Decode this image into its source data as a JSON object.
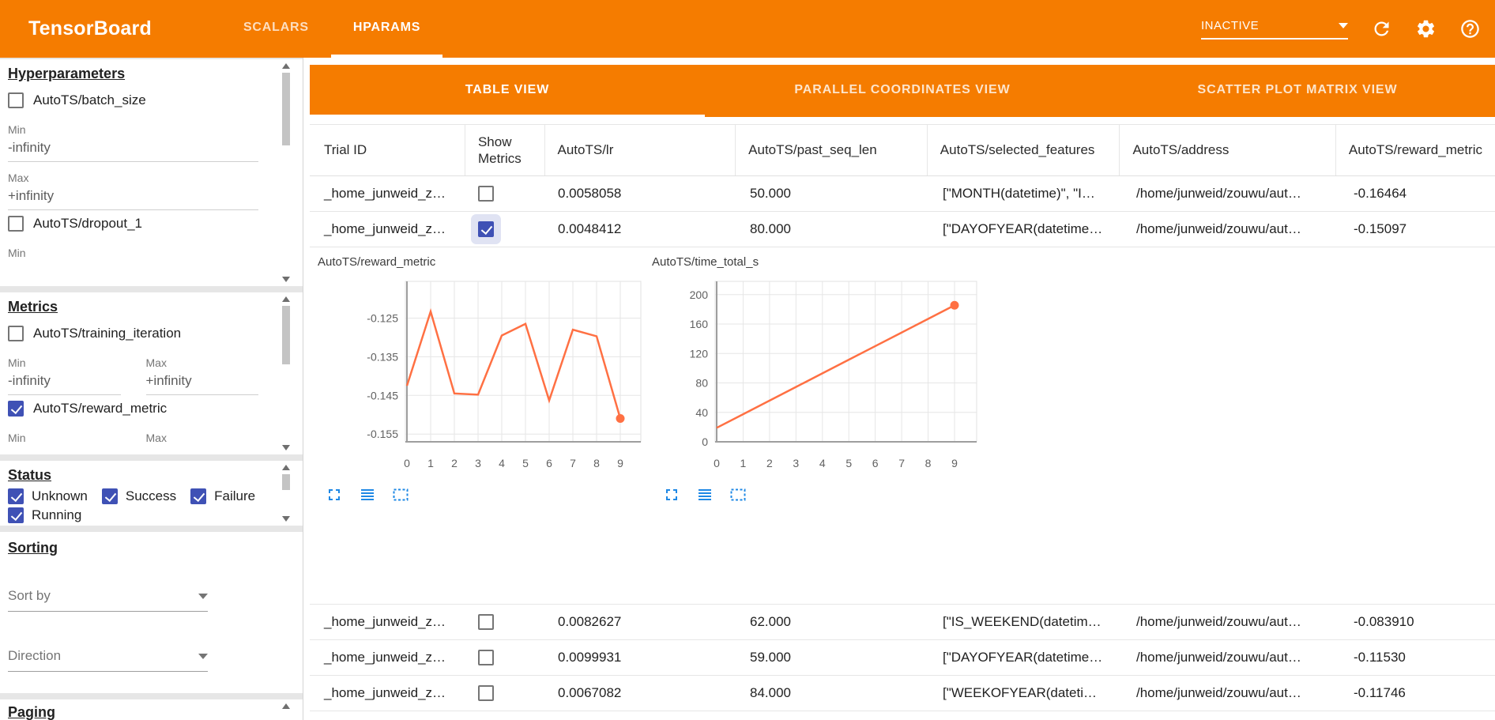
{
  "topbar": {
    "title": "TensorBoard",
    "nav_tabs": [
      {
        "label": "SCALARS"
      },
      {
        "label": "HPARAMS"
      }
    ],
    "run_status": "INACTIVE",
    "accent_color": "#f57c00"
  },
  "sidebar": {
    "hyperparameters": {
      "title": "Hyperparameters",
      "params": [
        {
          "label": "AutoTS/batch_size",
          "checked": false,
          "min_label": "Min",
          "min_value": "-infinity",
          "max_label": "Max",
          "max_value": "+infinity"
        },
        {
          "label": "AutoTS/dropout_1",
          "checked": false,
          "min_label": "Min"
        }
      ]
    },
    "metrics": {
      "title": "Metrics",
      "items": [
        {
          "label": "AutoTS/training_iteration",
          "checked": false,
          "min_label": "Min",
          "min_value": "-infinity",
          "max_label": "Max",
          "max_value": "+infinity"
        },
        {
          "label": "AutoTS/reward_metric",
          "checked": true,
          "min_label": "Min",
          "max_label": "Max"
        }
      ]
    },
    "status": {
      "title": "Status",
      "options": [
        {
          "label": "Unknown",
          "checked": true
        },
        {
          "label": "Success",
          "checked": true
        },
        {
          "label": "Failure",
          "checked": true
        },
        {
          "label": "Running",
          "checked": true
        }
      ]
    },
    "sorting": {
      "title": "Sorting",
      "sort_by_placeholder": "Sort by",
      "direction_placeholder": "Direction"
    },
    "paging": {
      "title": "Paging"
    }
  },
  "view_tabs": [
    {
      "label": "TABLE VIEW",
      "active": true
    },
    {
      "label": "PARALLEL COORDINATES VIEW",
      "active": false
    },
    {
      "label": "SCATTER PLOT MATRIX VIEW",
      "active": false
    }
  ],
  "table": {
    "columns": [
      "Trial ID",
      "Show Metrics",
      "AutoTS/lr",
      "AutoTS/past_seq_len",
      "AutoTS/selected_features",
      "AutoTS/address",
      "AutoTS/reward_metric"
    ],
    "rows": [
      {
        "trial_id": "_home_junweid_z…",
        "show_metrics": false,
        "lr": "0.0058058",
        "past_seq_len": "50.000",
        "selected_features": "[\"MONTH(datetime)\", \"I…",
        "address": "/home/junweid/zouwu/aut…",
        "reward_metric": "-0.16464"
      },
      {
        "trial_id": "_home_junweid_z…",
        "show_metrics": true,
        "lr": "0.0048412",
        "past_seq_len": "80.000",
        "selected_features": "[\"DAYOFYEAR(datetime…",
        "address": "/home/junweid/zouwu/aut…",
        "reward_metric": "-0.15097"
      },
      {
        "trial_id": "_home_junweid_z…",
        "show_metrics": false,
        "lr": "0.0082627",
        "past_seq_len": "62.000",
        "selected_features": "[\"IS_WEEKEND(datetim…",
        "address": "/home/junweid/zouwu/aut…",
        "reward_metric": "-0.083910"
      },
      {
        "trial_id": "_home_junweid_z…",
        "show_metrics": false,
        "lr": "0.0099931",
        "past_seq_len": "59.000",
        "selected_features": "[\"DAYOFYEAR(datetime…",
        "address": "/home/junweid/zouwu/aut…",
        "reward_metric": "-0.11530"
      },
      {
        "trial_id": "_home_junweid_z…",
        "show_metrics": false,
        "lr": "0.0067082",
        "past_seq_len": "84.000",
        "selected_features": "[\"WEEKOFYEAR(dateti…",
        "address": "/home/junweid/zouwu/aut…",
        "reward_metric": "-0.11746"
      }
    ]
  },
  "chart_data": [
    {
      "type": "line",
      "title": "AutoTS/reward_metric",
      "x": [
        0,
        1,
        2,
        3,
        4,
        5,
        6,
        7,
        8,
        9
      ],
      "values": [
        -0.1425,
        -0.1233,
        -0.1445,
        -0.1448,
        -0.1295,
        -0.1265,
        -0.1463,
        -0.128,
        -0.1297,
        -0.15097
      ],
      "y_ticks": [
        -0.125,
        -0.135,
        -0.145,
        -0.155
      ],
      "ylim": [
        -0.157,
        -0.1155
      ],
      "xlim": [
        0,
        9
      ],
      "grid": true,
      "line_color": "#ff7043"
    },
    {
      "type": "line",
      "title": "AutoTS/time_total_s",
      "x": [
        0,
        1,
        2,
        3,
        4,
        5,
        6,
        7,
        8,
        9
      ],
      "values": [
        19,
        37.5,
        56,
        74.5,
        93,
        111.5,
        130,
        148.5,
        167,
        185.5
      ],
      "y_ticks": [
        0,
        40,
        80,
        120,
        160,
        200
      ],
      "ylim": [
        0,
        218
      ],
      "xlim": [
        0,
        9
      ],
      "grid": true,
      "line_color": "#ff7043"
    }
  ]
}
